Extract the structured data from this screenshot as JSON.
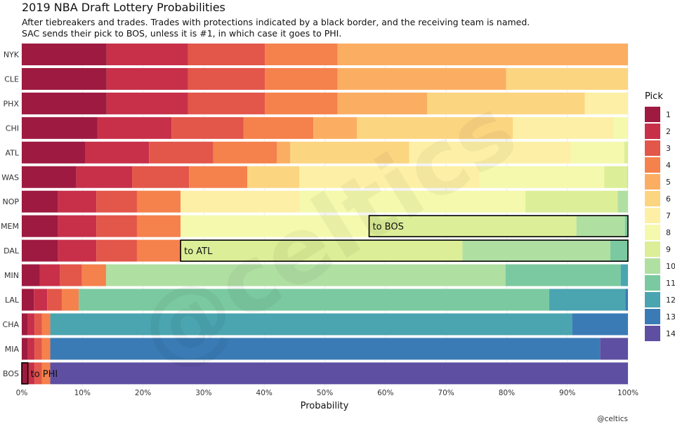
{
  "chart_data": {
    "type": "bar",
    "orientation": "horizontal-stacked",
    "title": "2019 NBA Draft Lottery Probabilities",
    "subtitle": [
      "After tiebreakers and trades. Trades with protections indicated by a black border, and the receiving team is named.",
      "SAC sends their pick to BOS, unless it is #1, in which case it goes to PHI."
    ],
    "xlabel": "Probability",
    "xlim": [
      0,
      100
    ],
    "xticks": [
      "0%",
      "10%",
      "20%",
      "30%",
      "40%",
      "50%",
      "60%",
      "70%",
      "80%",
      "90%",
      "100%"
    ],
    "legend_title": "Pick",
    "legend_position": "right",
    "pick_colors": {
      "1": "#9e1a40",
      "2": "#c8304a",
      "3": "#e3564a",
      "4": "#f5814c",
      "5": "#fbae62",
      "6": "#fcd581",
      "7": "#fdf0a6",
      "8": "#f4f9ad",
      "9": "#dcee97",
      "10": "#b0dfa2",
      "11": "#7bc9a0",
      "12": "#4aa5b0",
      "13": "#3a7bb5",
      "14": "#5e4fa2"
    },
    "categories": [
      "NYK",
      "CLE",
      "PHX",
      "CHI",
      "ATL",
      "WAS",
      "NOP",
      "MEM",
      "DAL",
      "MIN",
      "LAL",
      "CHA",
      "MIA",
      "BOS"
    ],
    "teams": [
      {
        "team": "NYK",
        "probs": {
          "1": 14.0,
          "2": 13.4,
          "3": 12.7,
          "4": 12.0,
          "5": 47.9
        }
      },
      {
        "team": "CLE",
        "probs": {
          "1": 14.0,
          "2": 13.4,
          "3": 12.7,
          "4": 12.0,
          "5": 27.8,
          "6": 20.1
        }
      },
      {
        "team": "PHX",
        "probs": {
          "1": 14.0,
          "2": 13.4,
          "3": 12.7,
          "4": 12.0,
          "5": 14.8,
          "6": 26.0,
          "7": 7.1
        }
      },
      {
        "team": "CHI",
        "probs": {
          "1": 12.5,
          "2": 12.2,
          "3": 11.9,
          "4": 11.5,
          "5": 7.2,
          "6": 25.7,
          "7": 16.7,
          "8": 2.3
        }
      },
      {
        "team": "ATL",
        "probs": {
          "1": 10.5,
          "2": 10.5,
          "3": 10.6,
          "4": 10.5,
          "5": 2.2,
          "6": 19.6,
          "7": 26.7,
          "8": 8.8,
          "9": 0.6
        }
      },
      {
        "team": "WAS",
        "probs": {
          "1": 9.0,
          "2": 9.2,
          "3": 9.4,
          "4": 9.6,
          "6": 8.6,
          "7": 29.7,
          "8": 20.6,
          "9": 3.8,
          "10": 0.1
        }
      },
      {
        "team": "NOP",
        "probs": {
          "1": 6.0,
          "2": 6.3,
          "3": 6.7,
          "4": 7.2,
          "7": 19.7,
          "8": 37.2,
          "9": 15.2,
          "10": 1.7
        }
      },
      {
        "team": "MEM",
        "probs": {
          "1": 6.0,
          "2": 6.3,
          "3": 6.7,
          "4": 7.2,
          "8": 31.1,
          "9": 34.2,
          "10": 8.0,
          "11": 0.5
        },
        "protected_label": "to BOS",
        "box_from_pick": 9
      },
      {
        "team": "DAL",
        "probs": {
          "1": 6.0,
          "2": 6.3,
          "3": 6.7,
          "4": 7.2,
          "9": 46.5,
          "10": 24.4,
          "11": 2.9
        },
        "protected_label": "to ATL",
        "box_from_pick": 5
      },
      {
        "team": "MIN",
        "probs": {
          "1": 3.0,
          "2": 3.3,
          "3": 3.6,
          "4": 4.0,
          "10": 65.9,
          "11": 19.0,
          "12": 1.2
        }
      },
      {
        "team": "LAL",
        "probs": {
          "1": 2.0,
          "2": 2.2,
          "3": 2.4,
          "4": 2.8,
          "11": 77.6,
          "12": 12.6,
          "13": 0.4
        }
      },
      {
        "team": "CHA",
        "probs": {
          "1": 1.0,
          "2": 1.1,
          "3": 1.2,
          "4": 1.4,
          "12": 86.1,
          "13": 9.2
        }
      },
      {
        "team": "MIA",
        "probs": {
          "1": 1.0,
          "2": 1.1,
          "3": 1.2,
          "4": 1.4,
          "13": 90.7,
          "14": 4.6
        }
      },
      {
        "team": "BOS",
        "probs": {
          "1": 1.0,
          "2": 1.1,
          "3": 1.2,
          "4": 1.4,
          "14": 95.3
        },
        "protected_label": "to PHI",
        "box_only_pick": 1
      }
    ],
    "credit": "@celtics",
    "watermark": "@celtics"
  }
}
